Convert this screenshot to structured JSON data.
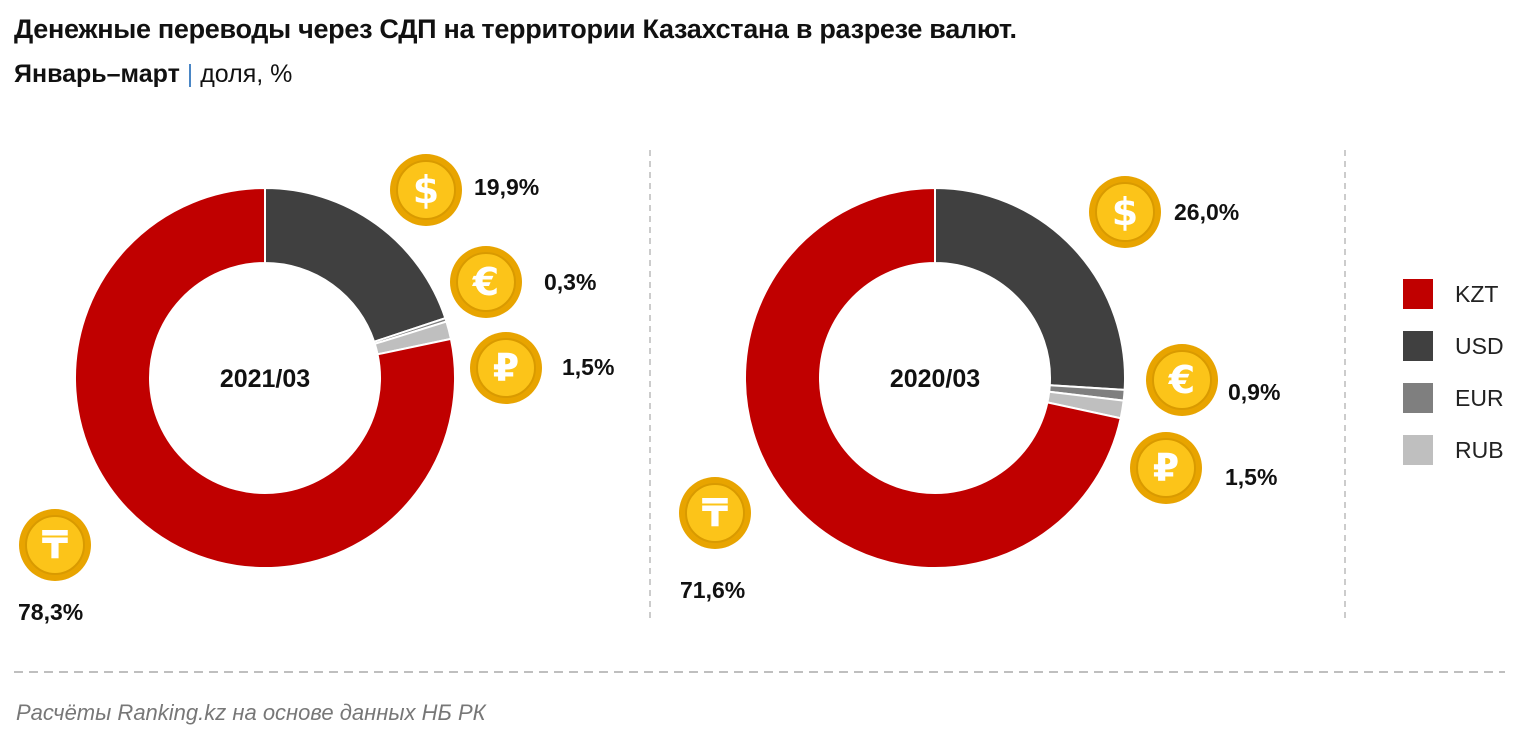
{
  "title": "Денежные переводы через СДП на территории Казахстана в разрезе валют.",
  "subtitle_bold": "Январь–март",
  "subtitle_sep": "|",
  "subtitle_rest": "доля, %",
  "source": "Расчёты Ranking.kz на основе данных НБ РК",
  "chart_data": [
    {
      "type": "pie",
      "variant": "donut",
      "center_label": "2021/03",
      "categories": [
        "USD",
        "EUR",
        "RUB",
        "KZT"
      ],
      "values": [
        19.9,
        0.3,
        1.5,
        78.3
      ],
      "labels": [
        "19,9%",
        "0,3%",
        "1,5%",
        "78,3%"
      ]
    },
    {
      "type": "pie",
      "variant": "donut",
      "center_label": "2020/03",
      "categories": [
        "USD",
        "EUR",
        "RUB",
        "KZT"
      ],
      "values": [
        26.0,
        0.9,
        1.5,
        71.6
      ],
      "labels": [
        "26,0%",
        "0,9%",
        "1,5%",
        "71,6%"
      ]
    }
  ],
  "legend": [
    {
      "label": "KZT",
      "color": "#c00000"
    },
    {
      "label": "USD",
      "color": "#404040"
    },
    {
      "label": "EUR",
      "color": "#7f7f7f"
    },
    {
      "label": "RUB",
      "color": "#bfbfbf"
    }
  ],
  "colors": {
    "USD": "#404040",
    "EUR": "#7f7f7f",
    "RUB": "#bfbfbf",
    "KZT": "#c00000",
    "coin": "#f5b800"
  },
  "icons": {
    "USD": "dollar-coin-icon",
    "EUR": "euro-coin-icon",
    "RUB": "ruble-coin-icon",
    "KZT": "tenge-coin-icon"
  }
}
